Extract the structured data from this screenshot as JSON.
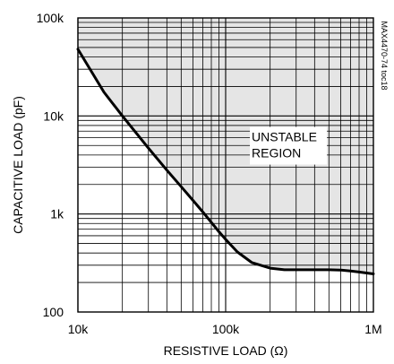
{
  "chart_data": {
    "type": "area",
    "x_scale": "log",
    "y_scale": "log",
    "xlim": [
      10000,
      1000000
    ],
    "ylim": [
      100,
      100000
    ],
    "xlabel": "RESISTIVE LOAD (Ω)",
    "ylabel": "CAPACITIVE LOAD (pF)",
    "x_tick_labels": [
      {
        "value": 10000,
        "label": "10k"
      },
      {
        "value": 100000,
        "label": "100k"
      },
      {
        "value": 1000000,
        "label": "1M"
      }
    ],
    "y_tick_labels": [
      {
        "value": 100,
        "label": "100"
      },
      {
        "value": 1000,
        "label": "1k"
      },
      {
        "value": 10000,
        "label": "10k"
      },
      {
        "value": 100000,
        "label": "100k"
      }
    ],
    "grid": true,
    "annotation": {
      "lines": [
        "UNSTABLE",
        "REGION"
      ],
      "x": 150000,
      "y": 6000
    },
    "series": [
      {
        "x": [
          10000,
          15000,
          20000,
          25000,
          30000,
          40000,
          50000,
          60000,
          70000,
          80000,
          90000,
          100000,
          120000,
          150000,
          200000,
          250000,
          300000,
          400000,
          500000,
          600000,
          700000,
          800000,
          900000,
          1000000
        ],
        "values": [
          48000,
          17500,
          10000,
          6600,
          4700,
          2800,
          1900,
          1380,
          1050,
          820,
          660,
          550,
          410,
          320,
          280,
          270,
          270,
          270,
          270,
          268,
          262,
          256,
          250,
          245
        ]
      }
    ],
    "colors": {
      "unstable_fill": "#e5e5e5",
      "grid": "#000000",
      "curve": "#000000"
    }
  },
  "part_number": "MAX4470-74 toc18"
}
